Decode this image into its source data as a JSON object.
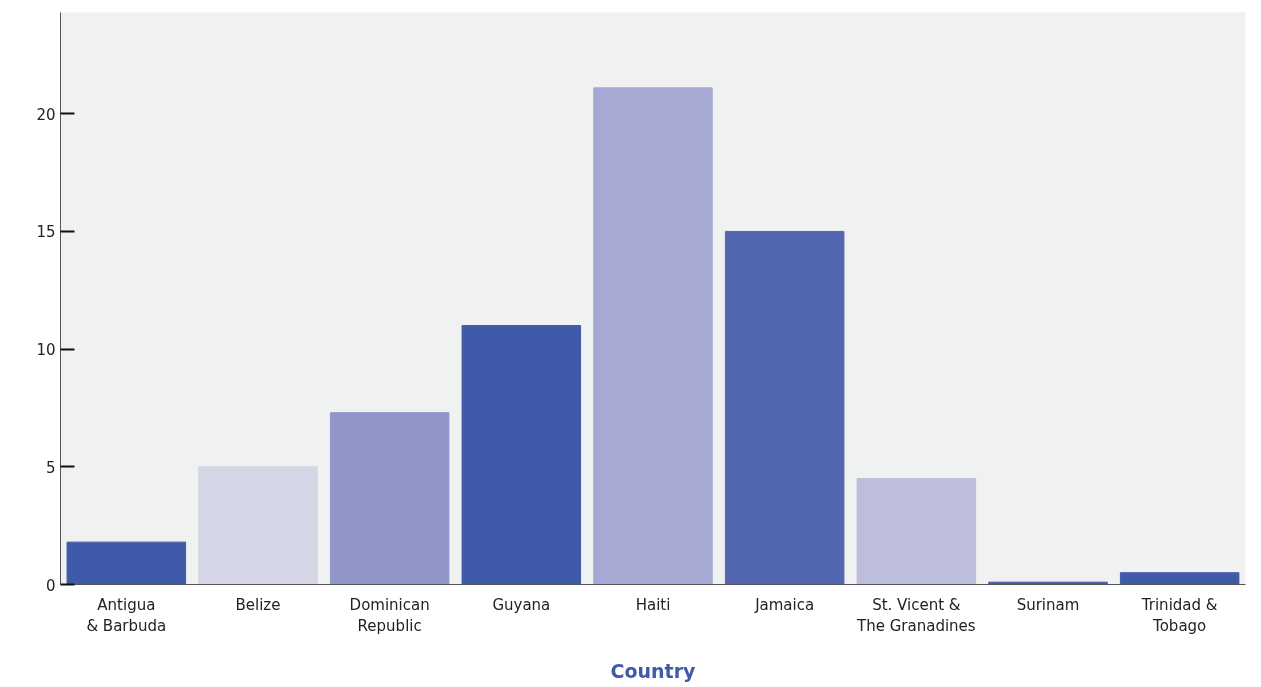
{
  "chart_data": {
    "type": "bar",
    "xlabel": "Country",
    "categories": [
      "Antigua\n& Barbuda",
      "Belize",
      "Dominican\nRepublic",
      "Guyana",
      "Haiti",
      "Jamaica",
      "St. Vicent &\nThe Granadines",
      "Surinam",
      "Trinidad &\nTobago"
    ],
    "values": [
      1.8,
      5.0,
      7.3,
      11.0,
      21.1,
      15.0,
      4.5,
      0.1,
      0.5
    ],
    "colors": [
      "#3f5aa8",
      "#d4d6e6",
      "#9096c8",
      "#3f5aa8",
      "#a6a9d3",
      "#5366b2",
      "#bcbedc",
      "#3f5aa8",
      "#3f5aa8"
    ],
    "ylim": [
      0,
      24.3
    ],
    "yticks": [
      0,
      5,
      10,
      15,
      20
    ],
    "grid": false
  }
}
